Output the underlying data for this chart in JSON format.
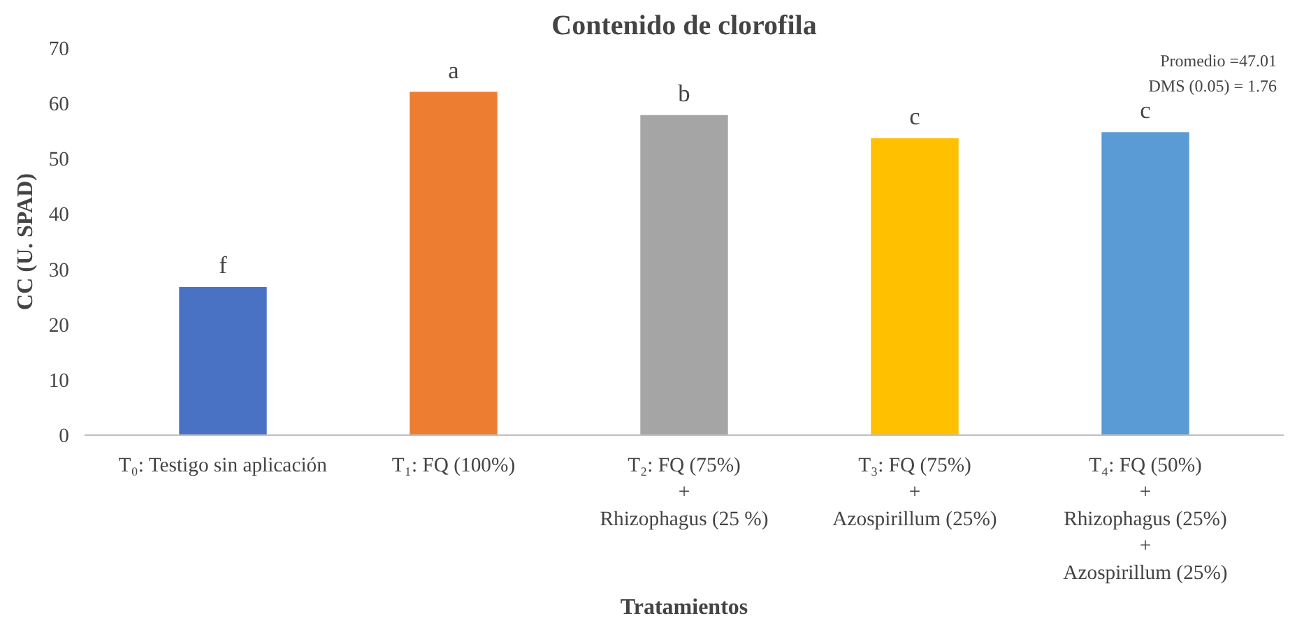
{
  "chart_data": {
    "type": "bar",
    "title": "Contenido de clorofila",
    "xlabel": "Tratamientos",
    "ylabel": "CC (U. SPAD)",
    "categories": [
      "T₀: Testigo sin aplicación",
      "T₁: FQ (100%)",
      "T₂: FQ (75%)\n+\nRhizophagus (25 %)",
      "T₃: FQ (75%)\n+\nAzospirillum (25%)",
      "T₄: FQ (50%)\n+\nRhizophagus (25%)\n+\nAzospirillum (25%)"
    ],
    "values": [
      26.8,
      62.1,
      57.9,
      53.7,
      54.8
    ],
    "colors": [
      "#4a72c4",
      "#ed7d31",
      "#a5a5a5",
      "#ffc000",
      "#5b9bd5"
    ],
    "ylim": [
      0,
      70
    ],
    "yticks": [
      0,
      10,
      20,
      30,
      40,
      50,
      60,
      70
    ],
    "grid": false,
    "annotations": [
      {
        "text": "f",
        "x": "T₀: Testigo sin aplicación",
        "y": 26.8
      },
      {
        "text": "a",
        "x": "T₁: FQ (100%)",
        "y": 62.1
      },
      {
        "text": "b",
        "x": "T₂: FQ (75%)\n+\nRhizophagus (25 %)",
        "y": 57.9
      },
      {
        "text": "c",
        "x": "T₃: FQ (75%)\n+\nAzospirillum (25%)",
        "y": 53.7
      },
      {
        "text": "c",
        "x": "T₄: FQ (50%)\n+\nRhizophagus (25%)\n+\nAzospirillum (25%)",
        "y": 54.8
      },
      "Promedio =47.01",
      "DMS (0.05) = 1.76"
    ]
  }
}
